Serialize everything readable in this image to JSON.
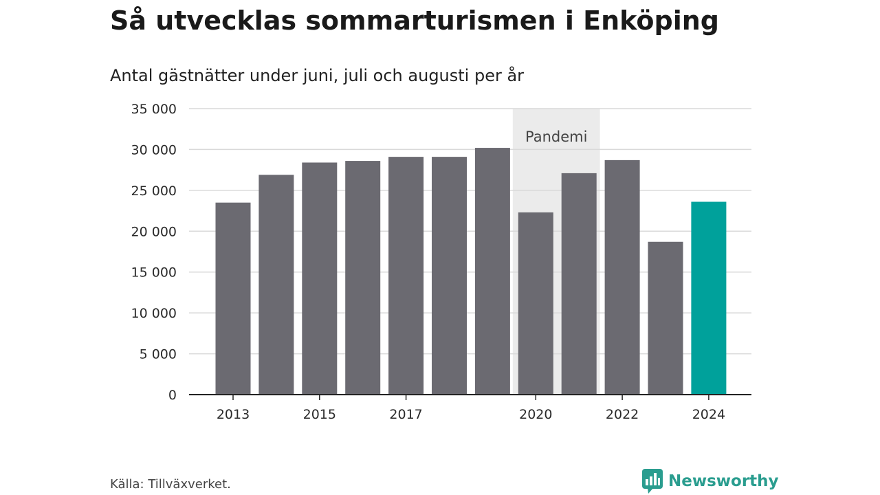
{
  "colors": {
    "bar": "#6b6a71",
    "highlight": "#00a19b",
    "band": "#ebebeb",
    "grid": "#d9d9d9",
    "axis": "#222222",
    "brand": "#2a9d8f"
  },
  "footer": {
    "source": "Källa: Tillväxverket.",
    "brand_name": "Newsworthy",
    "brand_icon": "chart-speech-bubble-icon"
  },
  "chart_data": {
    "type": "bar",
    "title": "Så utvecklas sommarturismen i Enköping",
    "subtitle": "Antal gästnätter under juni, juli och augusti per år",
    "categories": [
      "2013",
      "2014",
      "2015",
      "2016",
      "2017",
      "2018",
      "2019",
      "2020",
      "2021",
      "2022",
      "2023",
      "2024"
    ],
    "values": [
      23500,
      26900,
      28400,
      28600,
      29100,
      29100,
      30200,
      22300,
      27100,
      28700,
      18700,
      23600
    ],
    "highlight_category": "2024",
    "x_tick_labels": [
      "2013",
      "",
      "2015",
      "",
      "2017",
      "",
      "",
      "2020",
      "",
      "2022",
      "",
      "2024"
    ],
    "y_ticks": [
      0,
      5000,
      10000,
      15000,
      20000,
      25000,
      30000,
      35000
    ],
    "y_tick_labels": [
      "0",
      "5 000",
      "10 000",
      "15 000",
      "20 000",
      "25 000",
      "30 000",
      "35 000"
    ],
    "ylim": [
      0,
      35000
    ],
    "xlabel": "",
    "ylabel": "",
    "grid": true,
    "legend": "none",
    "shaded_region": {
      "label": "Pandemi",
      "from_category": "2020",
      "to_category": "2021"
    }
  }
}
